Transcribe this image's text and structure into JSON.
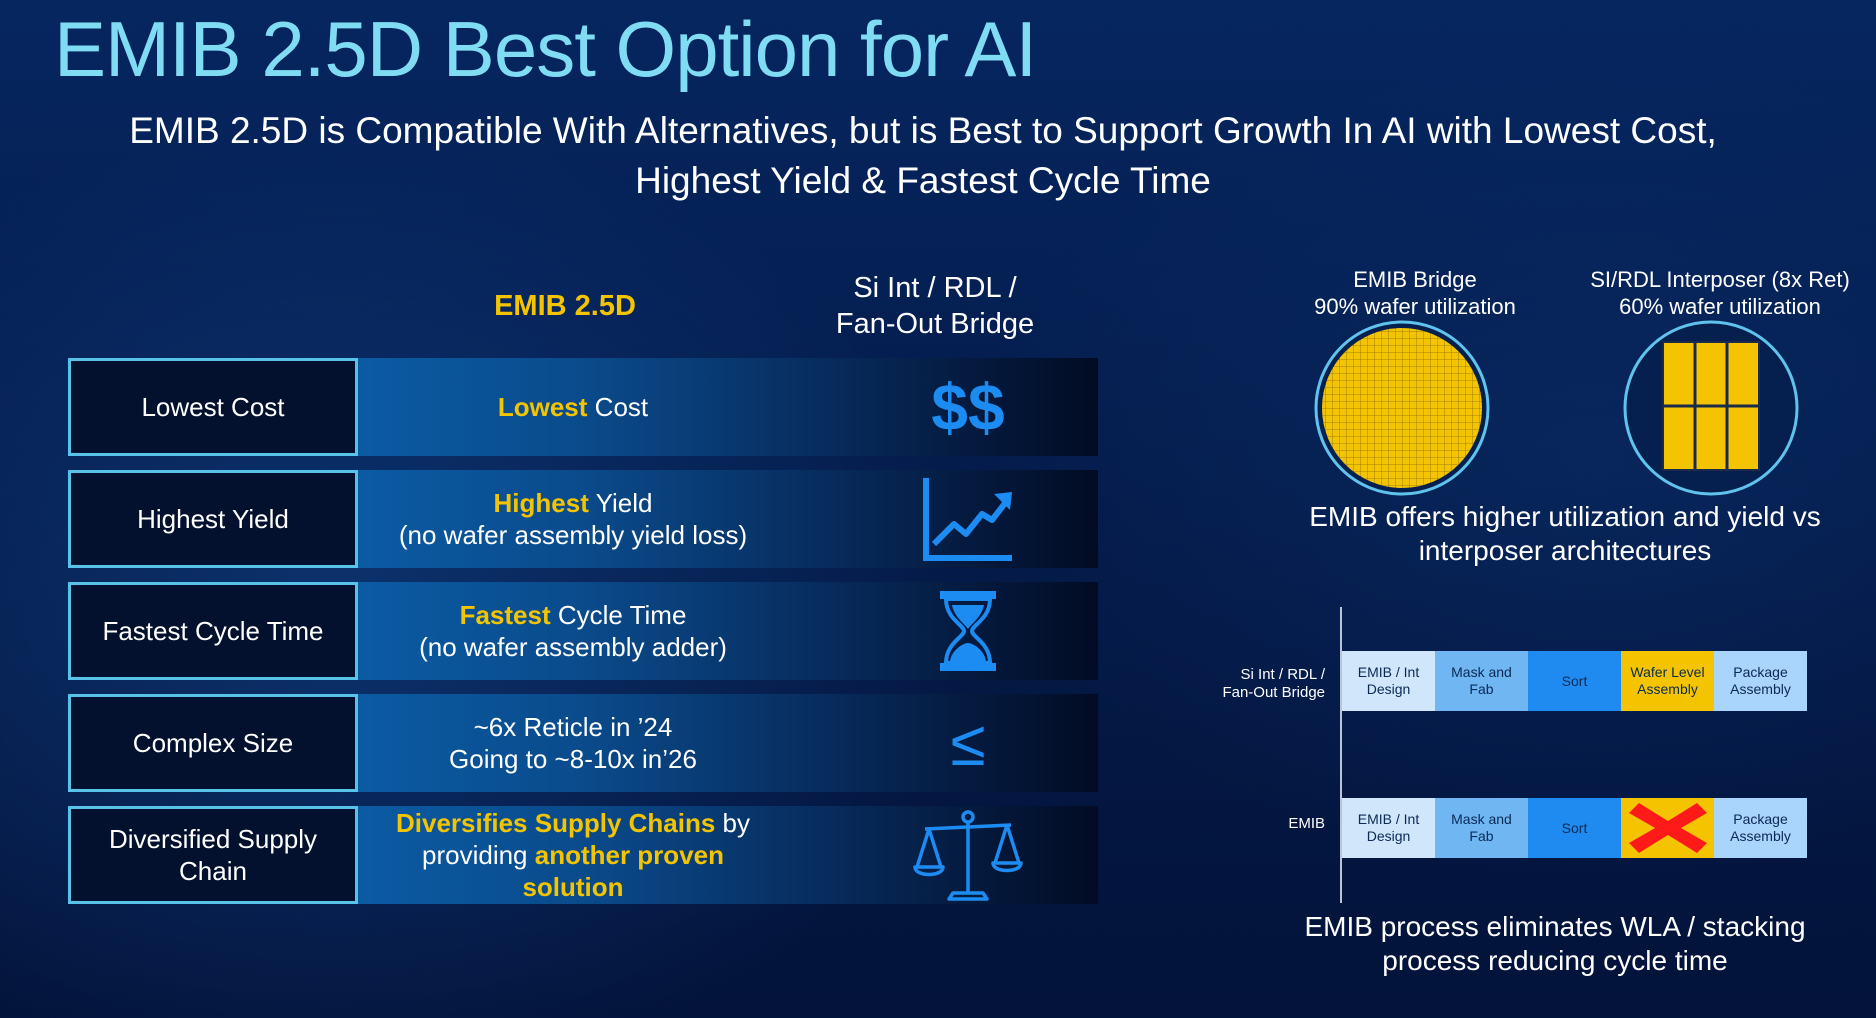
{
  "title": "EMIB 2.5D Best Option for AI",
  "subtitle": {
    "line1": "EMIB 2.5D is Compatible With Alternatives, but is Best to Support Growth In AI with Lowest Cost,",
    "line2": "Highest Yield & Fastest Cycle Time"
  },
  "columns": {
    "emib": "EMIB 2.5D",
    "alt_line1": "Si Int / RDL /",
    "alt_line2": "Fan-Out Bridge"
  },
  "rows": [
    {
      "label": "Lowest Cost",
      "desc_hl": "Lowest",
      "desc_rest": " Cost",
      "desc_line2": "",
      "alt_symbol": "$$",
      "alt_icon": "dollar-icon"
    },
    {
      "label": "Highest Yield",
      "desc_hl": "Highest",
      "desc_rest": " Yield",
      "desc_line2": "(no wafer assembly yield loss)",
      "alt_icon": "trend-chart-icon"
    },
    {
      "label": "Fastest Cycle Time",
      "desc_hl": "Fastest",
      "desc_rest": " Cycle Time",
      "desc_line2": "(no wafer assembly adder)",
      "alt_icon": "hourglass-icon"
    },
    {
      "label": "Complex Size",
      "desc_line1": "~6x Reticle in ’24",
      "desc_line2": "Going to ~8-10x in’26",
      "alt_symbol": "≤",
      "alt_icon": "less-equal-icon"
    },
    {
      "label_line1": "Diversified Supply",
      "label_line2": "Chain",
      "desc_hl1": "Diversifies Supply Chains",
      "desc_mid": " by",
      "desc_pre2": "providing ",
      "desc_hl2": "another proven solution",
      "alt_icon": "balance-scale-icon"
    }
  ],
  "wafers": {
    "emib_title": "EMIB Bridge",
    "emib_util": "90% wafer utilization",
    "interposer_title": "SI/RDL Interposer (8x Ret)",
    "interposer_util": "60% wafer utilization",
    "caption_line1": "EMIB offers higher utilization and yield vs",
    "caption_line2": "interposer architectures"
  },
  "timeline": {
    "alt_label_line1": "Si Int / RDL /",
    "alt_label_line2": "Fan-Out Bridge",
    "emib_label": "EMIB",
    "alt_steps": [
      {
        "l1": "EMIB / Int",
        "l2": "Design",
        "color": "#cfe6fb"
      },
      {
        "l1": "Mask and",
        "l2": "Fab",
        "color": "#6fb6f3"
      },
      {
        "l1": "Sort",
        "l2": "",
        "color": "#1f8bf0"
      },
      {
        "l1": "Wafer Level",
        "l2": "Assembly",
        "color": "#f5c400"
      },
      {
        "l1": "Package",
        "l2": "Assembly",
        "color": "#a9d4fb"
      }
    ],
    "emib_steps": [
      {
        "l1": "EMIB / Int",
        "l2": "Design",
        "color": "#cfe6fb"
      },
      {
        "l1": "Mask and",
        "l2": "Fab",
        "color": "#6fb6f3"
      },
      {
        "l1": "Sort",
        "l2": "",
        "color": "#1f8bf0"
      },
      {
        "l1": "",
        "l2": "",
        "color": "#f5c400",
        "crossed": true
      },
      {
        "l1": "Package",
        "l2": "Assembly",
        "color": "#a9d4fb"
      }
    ],
    "caption_line1": "EMIB process eliminates WLA / stacking",
    "caption_line2": "process reducing cycle time"
  },
  "colors": {
    "accent_yellow": "#f5c400",
    "title_cyan": "#7fdcf2",
    "icon_blue": "#1d8cf2",
    "border_cyan": "#58c3e8"
  }
}
